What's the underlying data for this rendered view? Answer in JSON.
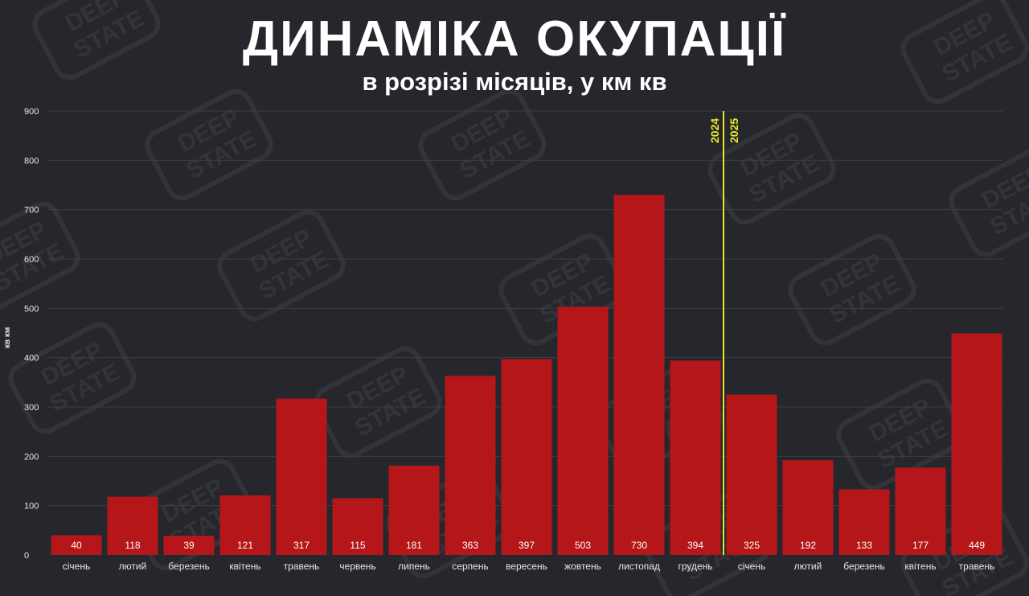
{
  "title": "ДИНАМІКА ОКУПАЦІЇ",
  "subtitle": "в розрізі місяців, у км кв",
  "watermark": {
    "line1": "DEEP",
    "line2": "STATE"
  },
  "colors": {
    "background": "#26272c",
    "bar": "#b5161a",
    "divider": "#e8e62a",
    "grid": "#3c3d43"
  },
  "chart_data": {
    "type": "bar",
    "title": "ДИНАМІКА ОКУПАЦІЇ",
    "subtitle": "в розрізі місяців, у км кв",
    "xlabel": "",
    "ylabel": "кв км",
    "ylim": [
      0,
      900
    ],
    "yticks": [
      0,
      100,
      200,
      300,
      400,
      500,
      600,
      700,
      800,
      900
    ],
    "grid": true,
    "legend": "none",
    "categories": [
      "січень",
      "лютий",
      "березень",
      "квітень",
      "травень",
      "червень",
      "липень",
      "серпень",
      "вересень",
      "жовтень",
      "листопад",
      "грудень",
      "січень",
      "лютий",
      "березень",
      "квітень",
      "травень"
    ],
    "values": [
      40,
      118,
      39,
      121,
      317,
      115,
      181,
      363,
      397,
      503,
      730,
      394,
      325,
      192,
      133,
      177,
      449
    ],
    "year_divider": {
      "after_index": 11,
      "left_label": "2024",
      "right_label": "2025"
    }
  }
}
